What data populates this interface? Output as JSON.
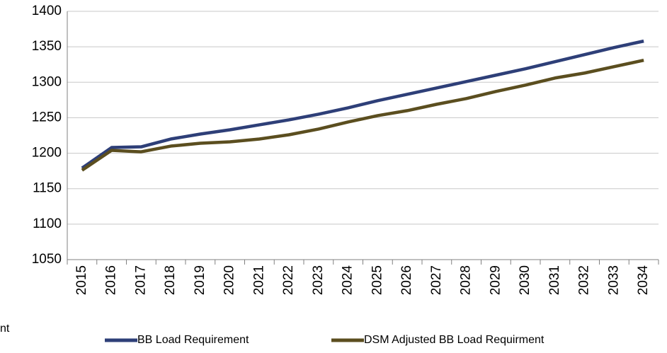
{
  "chart_data": {
    "type": "line",
    "categories": [
      "2015",
      "2016",
      "2017",
      "2018",
      "2019",
      "2020",
      "2021",
      "2022",
      "2023",
      "2024",
      "2025",
      "2026",
      "2027",
      "2028",
      "2029",
      "2030",
      "2031",
      "2032",
      "2033",
      "2034"
    ],
    "series": [
      {
        "name": "BB Load Requirement",
        "color": "#2e3f78",
        "values": [
          1179,
          1208,
          1209,
          1220,
          1227,
          1233,
          1240,
          1247,
          1255,
          1264,
          1274,
          1283,
          1292,
          1301,
          1310,
          1319,
          1329,
          1339,
          1349,
          1358
        ]
      },
      {
        "name": "DSM Adjusted BB Load Requirment",
        "color": "#5b4e1f",
        "values": [
          1176,
          1204,
          1202,
          1210,
          1214,
          1216,
          1220,
          1226,
          1234,
          1244,
          1253,
          1260,
          1269,
          1277,
          1287,
          1296,
          1306,
          1313,
          1322,
          1331
        ]
      }
    ],
    "ylim": [
      1050,
      1400
    ],
    "yticks": [
      1050,
      1100,
      1150,
      1200,
      1250,
      1300,
      1350,
      1400
    ],
    "grid": true,
    "annotation": "nt",
    "legend": "bottom"
  }
}
